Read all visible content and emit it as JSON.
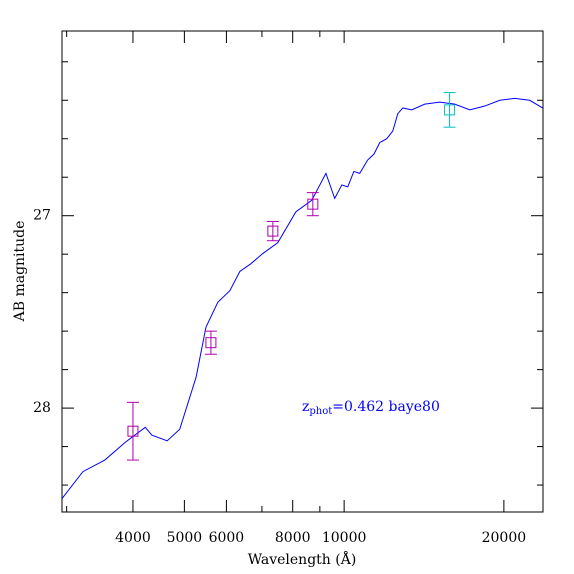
{
  "chart_data": {
    "type": "line",
    "xlabel": "Wavelength (Å)",
    "ylabel": "AB magnitude",
    "xscale": "log",
    "xlim": [
      2940,
      23700
    ],
    "ylim": [
      28.54,
      26.04
    ],
    "xticks": [
      4000,
      5000,
      6000,
      8000,
      10000,
      20000
    ],
    "xminor": [
      3000,
      7000,
      9000
    ],
    "yticks": [
      27,
      28
    ],
    "yminor": [
      26.2,
      26.4,
      26.6,
      26.8,
      27.2,
      27.4,
      27.6,
      27.8,
      28.2,
      28.4
    ],
    "annotation": {
      "main": "z",
      "sub": "phot",
      "rest": "=0.462 baye80",
      "color": "#0000ff"
    },
    "line": {
      "color": "#0000ff",
      "x": [
        2940,
        3220,
        3540,
        3860,
        4220,
        4340,
        4640,
        4900,
        5260,
        5490,
        5780,
        6090,
        6360,
        6670,
        7000,
        7500,
        8110,
        8690,
        9240,
        9600,
        9900,
        10160,
        10430,
        10700,
        11080,
        11380,
        11670,
        12030,
        12350,
        12620,
        12900,
        13410,
        14190,
        15140,
        16160,
        17250,
        18410,
        19650,
        20960,
        22370,
        23660
      ],
      "values": [
        28.47,
        28.33,
        28.27,
        28.18,
        28.1,
        28.14,
        28.17,
        28.11,
        27.84,
        27.58,
        27.45,
        27.39,
        27.29,
        27.25,
        27.2,
        27.14,
        26.98,
        26.92,
        26.78,
        26.91,
        26.84,
        26.85,
        26.77,
        26.78,
        26.71,
        26.68,
        26.62,
        26.6,
        26.56,
        26.47,
        26.44,
        26.45,
        26.42,
        26.41,
        26.42,
        26.45,
        26.43,
        26.4,
        26.39,
        26.4,
        26.44
      ]
    },
    "points": [
      {
        "color": "#b000b0",
        "x": [
          4000,
          5610,
          7340,
          8730
        ],
        "values": [
          28.12,
          27.66,
          27.08,
          26.94
        ],
        "errors": [
          0.15,
          0.06,
          0.05,
          0.06
        ]
      },
      {
        "color": "#00c0c0",
        "x": [
          15800
        ],
        "values": [
          26.45
        ],
        "errors": [
          0.09
        ]
      }
    ]
  }
}
